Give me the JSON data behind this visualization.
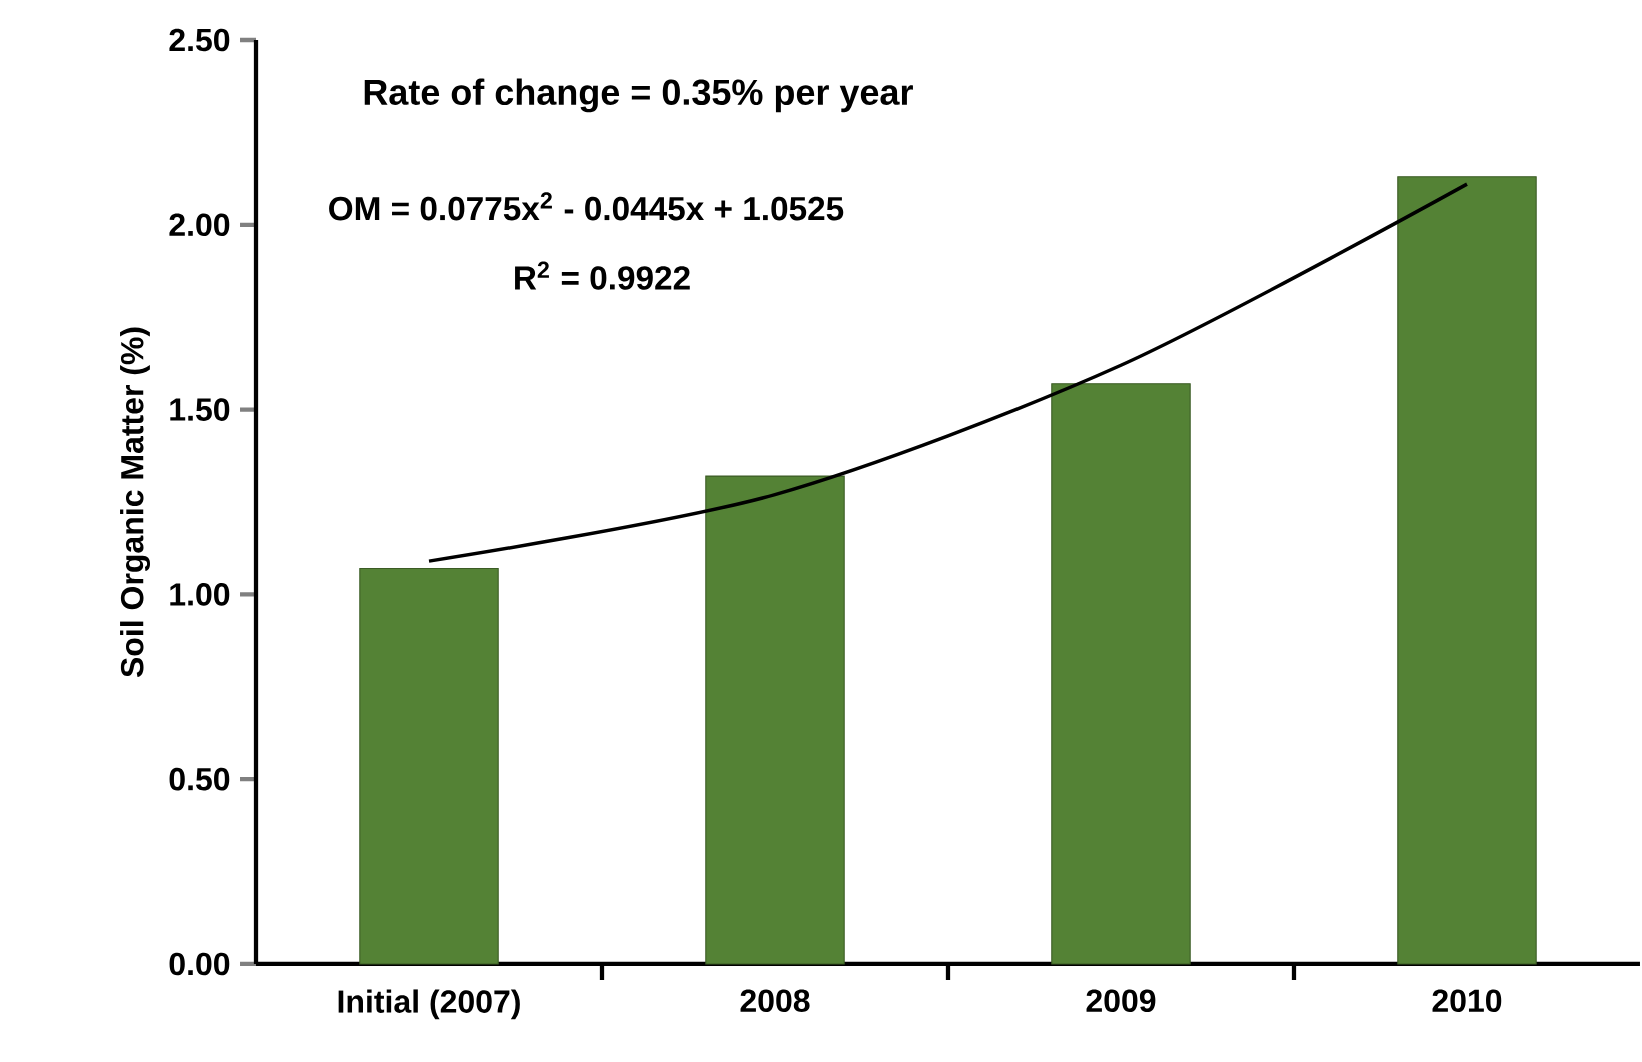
{
  "chart_data": {
    "type": "bar",
    "ylabel": "Soil Organic Matter (%)",
    "categories": [
      "Initial (2007)",
      "2008",
      "2009",
      "2010"
    ],
    "series": [
      {
        "color": "#548235",
        "values": [
          1.07,
          1.32,
          1.57,
          2.13
        ]
      },
      {
        "type": "line",
        "color": "#000000",
        "values": [
          1.09,
          1.27,
          1.62,
          2.11
        ]
      }
    ],
    "ylim": [
      0,
      2.5
    ],
    "yticks": [
      {
        "value": 0,
        "label": "0.00"
      },
      {
        "value": 0.5,
        "label": "0.50"
      },
      {
        "value": 1,
        "label": "1.00"
      },
      {
        "value": 1.5,
        "label": "1.50"
      },
      {
        "value": 2,
        "label": "2.00"
      },
      {
        "value": 2.5,
        "label": "2.50"
      }
    ],
    "annotations": [
      "Rate of change = 0.35% per year",
      "OM = 0.0775x$^{2}$ - 0.0445x + 1.0525",
      "R$^{2}$ = 0.9922"
    ],
    "grid": false
  }
}
